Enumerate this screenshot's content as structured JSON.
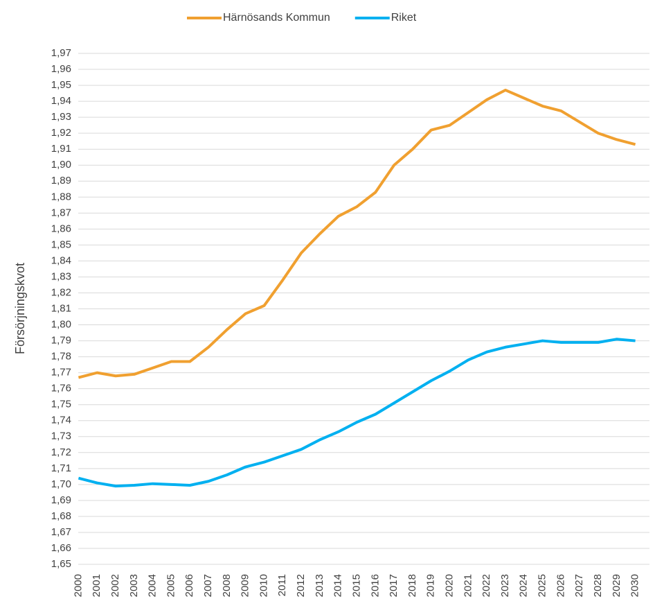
{
  "chart_data": {
    "type": "line",
    "y_axis_label": "Försörjningskvot",
    "categories": [
      "2000",
      "2001",
      "2002",
      "2003",
      "2004",
      "2005",
      "2006",
      "2007",
      "2008",
      "2009",
      "2010",
      "2011",
      "2012",
      "2013",
      "2014",
      "2015",
      "2016",
      "2017",
      "2018",
      "2019",
      "2020",
      "2021",
      "2022",
      "2023",
      "2024",
      "2025",
      "2026",
      "2027",
      "2028",
      "2029",
      "2030"
    ],
    "series": [
      {
        "name": "Härnösands Kommun",
        "color": "#f0a030",
        "values": [
          1.767,
          1.77,
          1.768,
          1.769,
          1.773,
          1.777,
          1.777,
          1.786,
          1.797,
          1.807,
          1.812,
          1.828,
          1.845,
          1.857,
          1.868,
          1.874,
          1.883,
          1.9,
          1.91,
          1.922,
          1.925,
          1.933,
          1.941,
          1.947,
          1.942,
          1.937,
          1.934,
          1.927,
          1.92,
          1.916,
          1.913
        ]
      },
      {
        "name": "Riket",
        "color": "#00b0f0",
        "values": [
          1.704,
          1.701,
          1.699,
          1.6995,
          1.7005,
          1.7,
          1.6995,
          1.702,
          1.706,
          1.711,
          1.714,
          1.718,
          1.722,
          1.728,
          1.733,
          1.739,
          1.744,
          1.751,
          1.758,
          1.765,
          1.771,
          1.778,
          1.783,
          1.786,
          1.788,
          1.79,
          1.789,
          1.789,
          1.789,
          1.791,
          1.79
        ]
      }
    ],
    "ylim": [
      1.65,
      1.97
    ],
    "yticks": [
      {
        "value": 1.65,
        "label": "1,65"
      },
      {
        "value": 1.66,
        "label": "1,66"
      },
      {
        "value": 1.67,
        "label": "1,67"
      },
      {
        "value": 1.68,
        "label": "1,68"
      },
      {
        "value": 1.69,
        "label": "1,69"
      },
      {
        "value": 1.7,
        "label": "1,70"
      },
      {
        "value": 1.71,
        "label": "1,71"
      },
      {
        "value": 1.72,
        "label": "1,72"
      },
      {
        "value": 1.73,
        "label": "1,73"
      },
      {
        "value": 1.74,
        "label": "1,74"
      },
      {
        "value": 1.75,
        "label": "1,75"
      },
      {
        "value": 1.76,
        "label": "1,76"
      },
      {
        "value": 1.77,
        "label": "1,77"
      },
      {
        "value": 1.78,
        "label": "1,78"
      },
      {
        "value": 1.79,
        "label": "1,79"
      },
      {
        "value": 1.8,
        "label": "1,80"
      },
      {
        "value": 1.81,
        "label": "1,81"
      },
      {
        "value": 1.82,
        "label": "1,82"
      },
      {
        "value": 1.83,
        "label": "1,83"
      },
      {
        "value": 1.84,
        "label": "1,84"
      },
      {
        "value": 1.85,
        "label": "1,85"
      },
      {
        "value": 1.86,
        "label": "1,86"
      },
      {
        "value": 1.87,
        "label": "1,87"
      },
      {
        "value": 1.88,
        "label": "1,88"
      },
      {
        "value": 1.89,
        "label": "1,89"
      },
      {
        "value": 1.9,
        "label": "1,90"
      },
      {
        "value": 1.91,
        "label": "1,91"
      },
      {
        "value": 1.92,
        "label": "1,92"
      },
      {
        "value": 1.93,
        "label": "1,93"
      },
      {
        "value": 1.94,
        "label": "1,94"
      },
      {
        "value": 1.95,
        "label": "1,95"
      },
      {
        "value": 1.96,
        "label": "1,96"
      },
      {
        "value": 1.97,
        "label": "1,97"
      }
    ],
    "grid": true,
    "legend": "top"
  }
}
